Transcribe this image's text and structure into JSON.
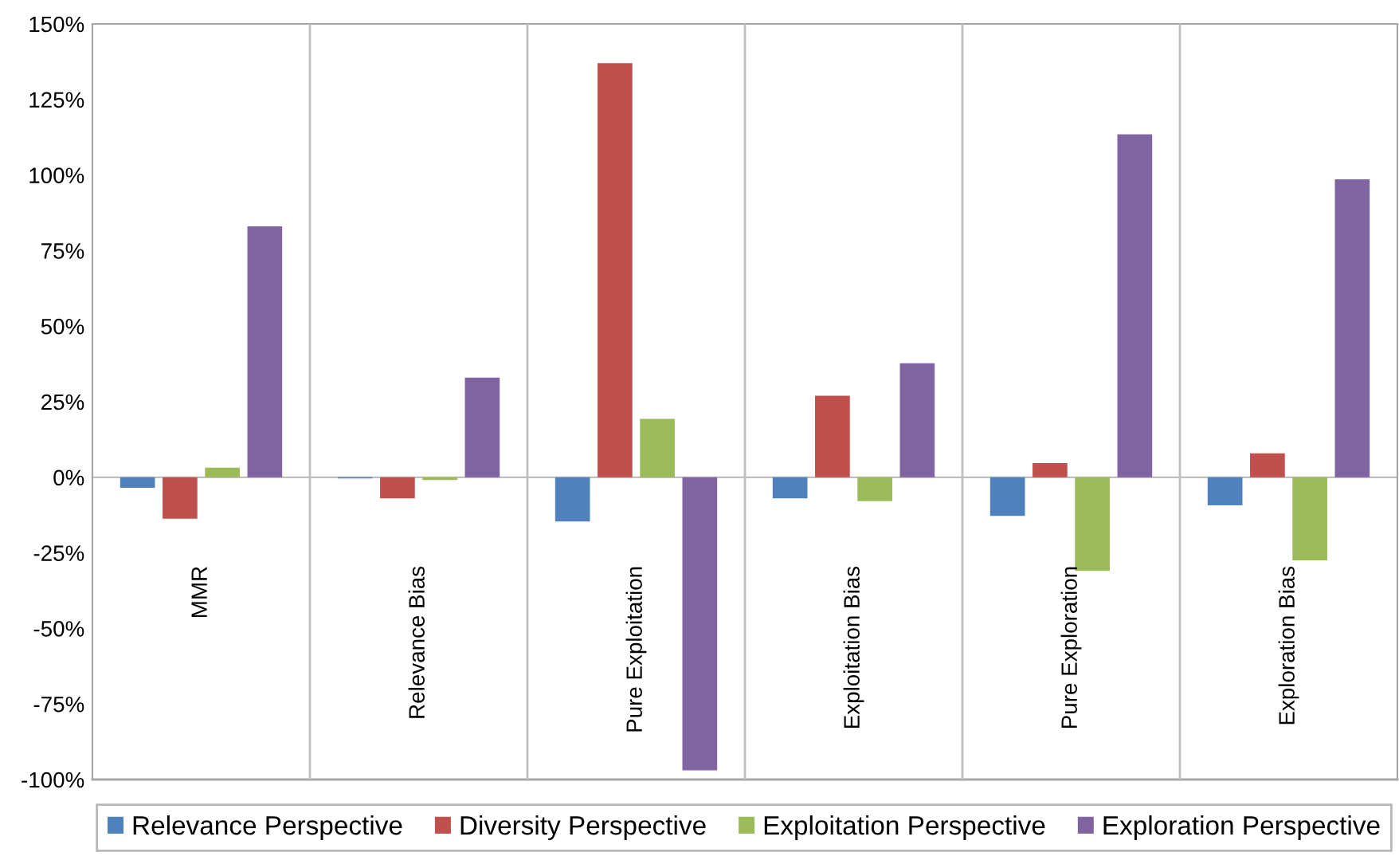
{
  "chart_data": {
    "type": "bar",
    "categories": [
      "MMR",
      "Relevance Bias",
      "Pure Exploitation",
      "Exploitation Bias",
      "Pure Exploration",
      "Exploration Bias"
    ],
    "series": [
      {
        "name": "Relevance Perspective",
        "color": "#4f81bd",
        "values": [
          -3.5,
          -0.4,
          -14.6,
          -7,
          -12.8,
          -9.3
        ]
      },
      {
        "name": "Diversity Perspective",
        "color": "#c0504d",
        "values": [
          -13.7,
          -7,
          137,
          27,
          4.7,
          7.9
        ]
      },
      {
        "name": "Exploitation Perspective",
        "color": "#9bbb59",
        "values": [
          3.2,
          -0.9,
          19.3,
          -7.9,
          -31,
          -27.5
        ]
      },
      {
        "name": "Exploration Perspective",
        "color": "#8064a2",
        "values": [
          83,
          33,
          -97,
          37.7,
          113.5,
          98.6
        ]
      }
    ],
    "ylim": [
      -100,
      150
    ],
    "yticks": [
      {
        "value": -100,
        "label": "-100%"
      },
      {
        "value": -75,
        "label": "-75%"
      },
      {
        "value": -50,
        "label": "-50%"
      },
      {
        "value": -25,
        "label": "-25%"
      },
      {
        "value": 0,
        "label": "0%"
      },
      {
        "value": 25,
        "label": "25%"
      },
      {
        "value": 50,
        "label": "50%"
      },
      {
        "value": 75,
        "label": "75%"
      },
      {
        "value": 100,
        "label": "100%"
      },
      {
        "value": 125,
        "label": "125%"
      },
      {
        "value": 150,
        "label": "150%"
      }
    ],
    "grid": "x",
    "legend": "bottom"
  }
}
